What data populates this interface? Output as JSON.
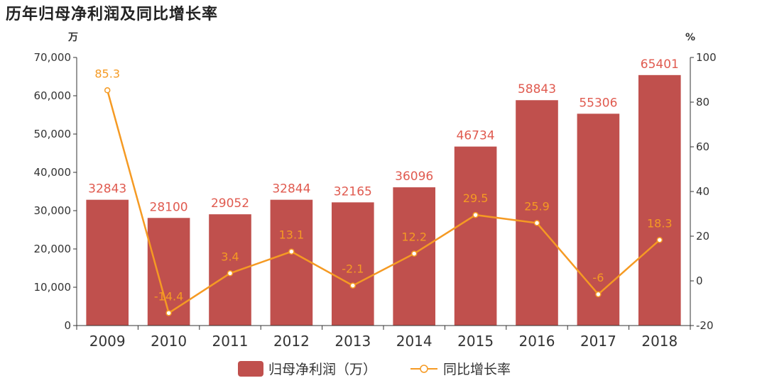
{
  "title": "历年归母净利润及同比增长率",
  "colors": {
    "bar": "#c0504d",
    "line": "#f59a23",
    "bar_label": "#e05a4f",
    "axis": "#333333"
  },
  "chart_data": {
    "type": "bar",
    "title": "历年归母净利润及同比增长率",
    "categories": [
      "2009",
      "2010",
      "2011",
      "2012",
      "2013",
      "2014",
      "2015",
      "2016",
      "2017",
      "2018"
    ],
    "series": [
      {
        "name": "归母净利润（万）",
        "type": "bar",
        "axis": "left",
        "values": [
          32843,
          28100,
          29052,
          32844,
          32165,
          36096,
          46734,
          58843,
          55306,
          65401
        ]
      },
      {
        "name": "同比增长率",
        "type": "line",
        "axis": "right",
        "values": [
          85.3,
          -14.4,
          3.4,
          13.1,
          -2.1,
          12.2,
          29.5,
          25.9,
          -6,
          18.3
        ]
      }
    ],
    "left_axis": {
      "unit": "万",
      "ylim": [
        0,
        70000
      ],
      "ticks": [
        "0",
        "10,000",
        "20,000",
        "30,000",
        "40,000",
        "50,000",
        "60,000",
        "70,000"
      ]
    },
    "right_axis": {
      "unit": "%",
      "ylim": [
        -20,
        100
      ],
      "ticks": [
        "-20",
        "0",
        "20",
        "40",
        "60",
        "80",
        "100"
      ]
    },
    "grid": false,
    "legend_position": "bottom-center"
  }
}
